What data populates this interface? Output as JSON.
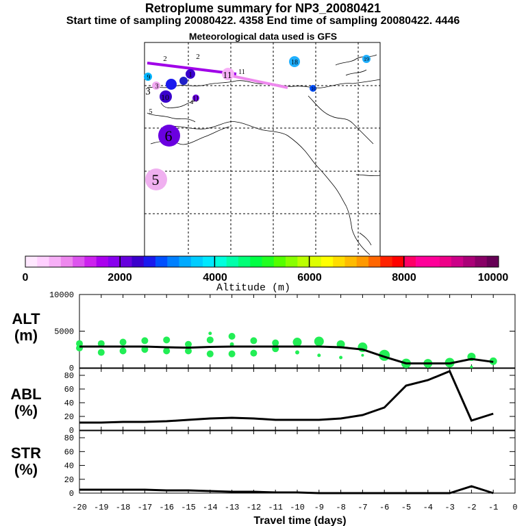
{
  "header": {
    "title": "Retroplume summary for NP3_20080421",
    "sampling": "Start time of sampling 20080422.  4358     End time of sampling 20080422.  4446",
    "met": "Meteorological data used is GFS"
  },
  "colorbar": {
    "label": "Altitude (m)",
    "ticks": [
      "0",
      "2000",
      "4000",
      "6000",
      "8000",
      "10000"
    ],
    "colors": [
      "#ffe8ff",
      "#ffd0ff",
      "#f7b0f7",
      "#ee88ee",
      "#dd55ee",
      "#cc22ee",
      "#aa00ee",
      "#8800ee",
      "#6600dd",
      "#3a00cc",
      "#1a1aee",
      "#0050ff",
      "#0080ff",
      "#00aaff",
      "#00ccff",
      "#00e8ff",
      "#00ffdd",
      "#00ffaa",
      "#00ff77",
      "#00ff44",
      "#22ff22",
      "#55ff00",
      "#88ff00",
      "#bbff00",
      "#ddff00",
      "#ffff00",
      "#ffdd00",
      "#ffbb00",
      "#ff9900",
      "#ff6600",
      "#ff2200",
      "#ff0000",
      "#ff0066",
      "#ff0099",
      "#ff0099",
      "#ee0088",
      "#cc0088",
      "#aa0077",
      "#880066",
      "#660055"
    ]
  },
  "map_labels": [
    {
      "text": "2",
      "c": "#fff"
    },
    {
      "text": "2",
      "c": "#fff"
    },
    {
      "text": "9",
      "c": "#00b4ff"
    },
    {
      "text": "3",
      "c": "#ffaaee"
    },
    {
      "text": "3",
      "c": "#1a1aee"
    },
    {
      "text": "1",
      "c": "#1a1aee"
    },
    {
      "text": "10",
      "c": "#3a00cc"
    },
    {
      "text": "11",
      "c": "#6600dd"
    },
    {
      "text": "5",
      "c": "#fff"
    },
    {
      "text": "6",
      "c": "#7a00ee"
    },
    {
      "text": "5",
      "c": "#f0a8f0"
    },
    {
      "text": "11",
      "c": "#ee88ee"
    },
    {
      "text": "11",
      "c": "#fff"
    },
    {
      "text": "18",
      "c": "#20b0ff"
    },
    {
      "text": "19",
      "c": "#20b0ff"
    },
    {
      "text": "10",
      "c": "#0050ff"
    },
    {
      "text": "4",
      "c": "#fff"
    }
  ],
  "chart_data": [
    {
      "type": "line",
      "title": "ALT (m)",
      "ylabel_line1": "ALT",
      "ylabel_line2": "(m)",
      "xlabel": "Travel time (days)",
      "x": [
        -20,
        -19,
        -18,
        -17,
        -16,
        -15,
        -14,
        -13,
        -12,
        -11,
        -10,
        -9,
        -8,
        -7,
        -6,
        -5,
        -4,
        -3,
        -2,
        -1
      ],
      "xlim": [
        -20,
        0
      ],
      "ylim": [
        0,
        10000
      ],
      "yticks": [
        "0",
        "5000",
        "10000"
      ],
      "xticks": [
        "-20",
        "-19",
        "-18",
        "-17",
        "-16",
        "-15",
        "-14",
        "-13",
        "-12",
        "-11",
        "-10",
        "-9",
        "-8",
        "-7",
        "-6",
        "-5",
        "-4",
        "-3",
        "-2",
        "-1",
        "0"
      ],
      "series": [
        {
          "name": "mean altitude",
          "values": [
            2900,
            2900,
            2900,
            2900,
            2800,
            2750,
            2850,
            2900,
            2900,
            2900,
            2900,
            2900,
            2800,
            2500,
            1500,
            600,
            600,
            600,
            1200,
            800
          ]
        }
      ],
      "dots": [
        [
          -20,
          3300,
          1
        ],
        [
          -20,
          2700,
          1
        ],
        [
          -19,
          3300,
          1
        ],
        [
          -19,
          2100,
          1
        ],
        [
          -18,
          3500,
          1
        ],
        [
          -18,
          2300,
          1
        ],
        [
          -17,
          3700,
          1
        ],
        [
          -17,
          2500,
          1
        ],
        [
          -16,
          3800,
          1
        ],
        [
          -16,
          2300,
          1
        ],
        [
          -15,
          3200,
          1
        ],
        [
          -15,
          2300,
          1
        ],
        [
          -14,
          3800,
          1
        ],
        [
          -14,
          4700,
          0.5
        ],
        [
          -14,
          1900,
          1
        ],
        [
          -13,
          4300,
          1
        ],
        [
          -13,
          3200,
          0.6
        ],
        [
          -13,
          1900,
          1
        ],
        [
          -12,
          3700,
          1
        ],
        [
          -12,
          2000,
          1
        ],
        [
          -11,
          3400,
          1
        ],
        [
          -11,
          2600,
          1
        ],
        [
          -10,
          3500,
          1.3
        ],
        [
          -10,
          2100,
          0.6
        ],
        [
          -9,
          3600,
          1.4
        ],
        [
          -9,
          1700,
          0.5
        ],
        [
          -8,
          3200,
          1.2
        ],
        [
          -8,
          1400,
          0.5
        ],
        [
          -7,
          2800,
          1.4
        ],
        [
          -7,
          1700,
          0.4
        ],
        [
          -6,
          1700,
          1.6
        ],
        [
          -5,
          600,
          1.4
        ],
        [
          -4,
          600,
          1.3
        ],
        [
          -3,
          700,
          1.4
        ],
        [
          -2,
          1500,
          1.2
        ],
        [
          -2,
          100,
          0.4
        ],
        [
          -1,
          900,
          1.1
        ]
      ]
    },
    {
      "type": "line",
      "title": "ABL (%)",
      "ylabel_line1": "ABL",
      "ylabel_line2": "(%)",
      "x": [
        -20,
        -19,
        -18,
        -17,
        -16,
        -15,
        -14,
        -13,
        -12,
        -11,
        -10,
        -9,
        -8,
        -7,
        -6,
        -5,
        -4,
        -3,
        -2,
        -1
      ],
      "ylim": [
        0,
        90
      ],
      "yticks": [
        "0",
        "20",
        "40",
        "60",
        "80"
      ],
      "series": [
        {
          "name": "ABL fraction",
          "values": [
            11,
            11,
            12,
            12,
            13,
            15,
            17,
            18,
            17,
            15,
            15,
            15,
            17,
            22,
            33,
            65,
            73,
            86,
            14,
            24
          ]
        }
      ]
    },
    {
      "type": "line",
      "title": "STR (%)",
      "ylabel_line1": "STR",
      "ylabel_line2": "(%)",
      "x": [
        -20,
        -19,
        -18,
        -17,
        -16,
        -15,
        -14,
        -13,
        -12,
        -11,
        -10,
        -9,
        -8,
        -7,
        -6,
        -5,
        -4,
        -3,
        -2,
        -1
      ],
      "ylim": [
        0,
        90
      ],
      "yticks": [
        "0",
        "20",
        "40",
        "60",
        "80"
      ],
      "series": [
        {
          "name": "stratospheric fraction",
          "values": [
            5,
            5,
            5,
            5,
            4,
            4,
            3,
            2,
            2,
            1,
            1,
            0,
            0,
            0,
            0,
            0,
            0,
            0,
            10,
            0
          ]
        }
      ]
    }
  ]
}
